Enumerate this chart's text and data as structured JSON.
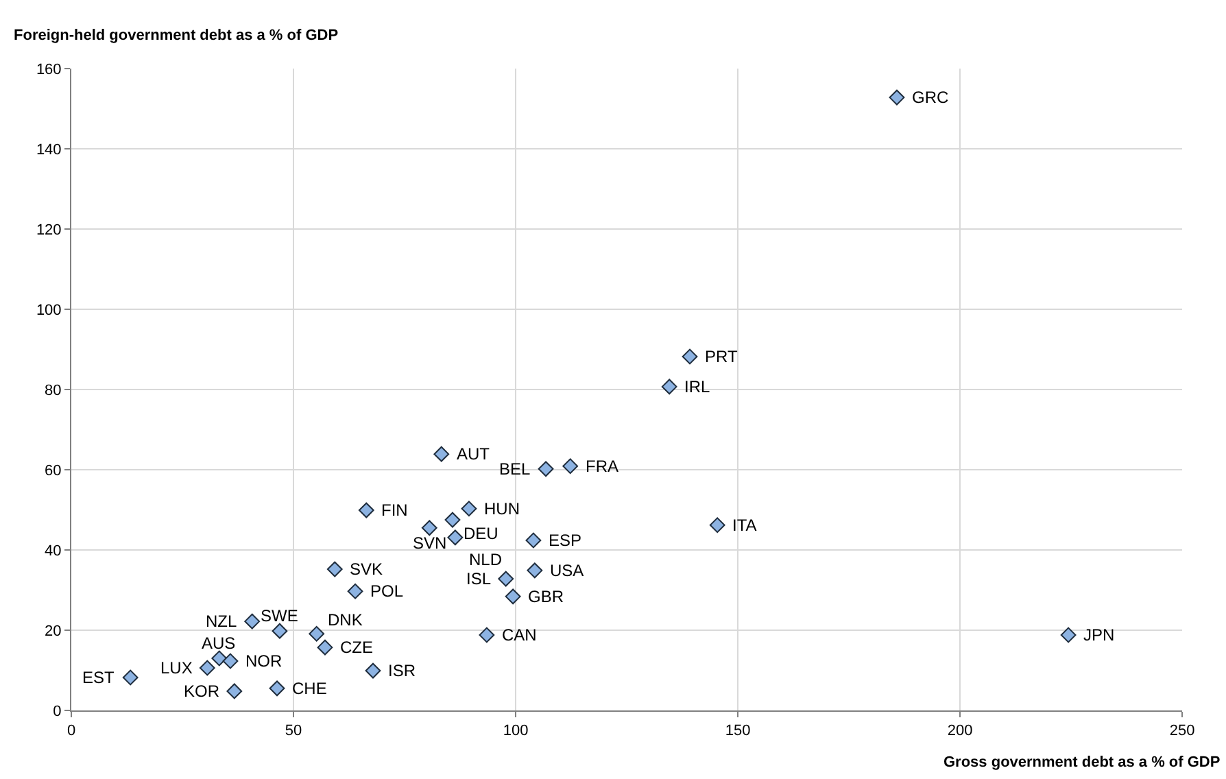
{
  "chart_data": {
    "type": "scatter",
    "xlabel": "Gross government debt as a % of GDP",
    "ylabel": "Foreign-held government debt as a % of GDP",
    "x": [
      185.8,
      139.2,
      134.6,
      83.3,
      112.3,
      106.8,
      145.4,
      224.4,
      89.5,
      66.4,
      85.8,
      80.6,
      86.4,
      104.0,
      59.3,
      104.3,
      97.8,
      63.9,
      99.4,
      40.7,
      46.9,
      55.2,
      93.5,
      57.1,
      33.3,
      35.8,
      30.6,
      67.9,
      13.3,
      36.7,
      46.3
    ],
    "series": [
      {
        "color": "#8db3e2",
        "values": [
          152.8,
          88.2,
          80.7,
          63.9,
          60.9,
          60.2,
          46.2,
          18.8,
          50.3,
          49.9,
          47.5,
          45.5,
          43.1,
          42.4,
          35.2,
          34.9,
          32.8,
          29.7,
          28.4,
          22.2,
          19.8,
          19.1,
          18.8,
          15.7,
          13.0,
          12.3,
          10.6,
          9.9,
          8.2,
          4.8,
          5.5
        ]
      }
    ],
    "annotations": [
      {
        "text": "GRC",
        "x": 185.8,
        "y": 152.8
      },
      {
        "text": "PRT",
        "x": 139.2,
        "y": 88.2
      },
      {
        "text": "IRL",
        "x": 134.6,
        "y": 80.7
      },
      {
        "text": "AUT",
        "x": 83.3,
        "y": 63.9
      },
      {
        "text": "FRA",
        "x": 112.3,
        "y": 60.9
      },
      {
        "text": "BEL",
        "x": 106.8,
        "y": 60.2
      },
      {
        "text": "ITA",
        "x": 145.4,
        "y": 46.2
      },
      {
        "text": "JPN",
        "x": 224.4,
        "y": 18.8
      },
      {
        "text": "HUN",
        "x": 89.5,
        "y": 50.3
      },
      {
        "text": "FIN",
        "x": 66.4,
        "y": 49.9
      },
      {
        "text": "DEU",
        "x": 85.8,
        "y": 47.5
      },
      {
        "text": "SVN",
        "x": 80.6,
        "y": 45.5
      },
      {
        "text": "NLD",
        "x": 86.4,
        "y": 43.1
      },
      {
        "text": "ESP",
        "x": 104.0,
        "y": 42.4
      },
      {
        "text": "SVK",
        "x": 59.3,
        "y": 35.2
      },
      {
        "text": "USA",
        "x": 104.3,
        "y": 34.9
      },
      {
        "text": "ISL",
        "x": 97.8,
        "y": 32.8
      },
      {
        "text": "POL",
        "x": 63.9,
        "y": 29.7
      },
      {
        "text": "GBR",
        "x": 99.4,
        "y": 28.4
      },
      {
        "text": "NZL",
        "x": 40.7,
        "y": 22.2
      },
      {
        "text": "SWE",
        "x": 46.9,
        "y": 19.8
      },
      {
        "text": "DNK",
        "x": 55.2,
        "y": 19.1
      },
      {
        "text": "CAN",
        "x": 93.5,
        "y": 18.8
      },
      {
        "text": "CZE",
        "x": 57.1,
        "y": 15.7
      },
      {
        "text": "AUS",
        "x": 33.3,
        "y": 13.0
      },
      {
        "text": "NOR",
        "x": 35.8,
        "y": 12.3
      },
      {
        "text": "LUX",
        "x": 30.6,
        "y": 10.6
      },
      {
        "text": "ISR",
        "x": 67.9,
        "y": 9.9
      },
      {
        "text": "EST",
        "x": 13.3,
        "y": 8.2
      },
      {
        "text": "KOR",
        "x": 36.7,
        "y": 4.8
      },
      {
        "text": "CHE",
        "x": 46.3,
        "y": 5.5
      }
    ],
    "xlim": [
      0,
      250
    ],
    "xticks": [
      0,
      50,
      100,
      150,
      200,
      250
    ],
    "ylim": [
      0,
      160
    ],
    "yticks": [
      0,
      20,
      40,
      60,
      80,
      100,
      120,
      140,
      160
    ],
    "grid": true,
    "marker": "diamond"
  }
}
